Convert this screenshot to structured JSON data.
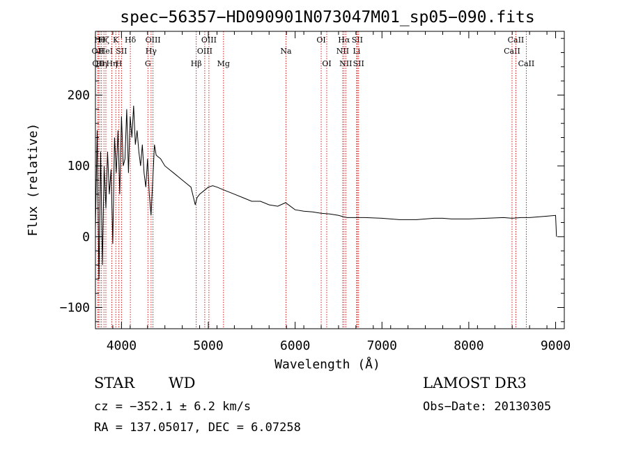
{
  "chart_data": {
    "type": "line",
    "title": "spec−56357−HD090901N073047M01_sp05−090.fits",
    "xlabel": "Wavelength (Å)",
    "ylabel": "Flux (relative)",
    "xlim": [
      3700,
      9100
    ],
    "ylim": [
      -130,
      290
    ],
    "x_ticks": [
      4000,
      5000,
      6000,
      7000,
      8000,
      9000
    ],
    "y_ticks": [
      -100,
      0,
      100,
      200
    ],
    "grid": false,
    "line_color": "#000000",
    "marker_color": "#cc0000",
    "series": [
      {
        "name": "flux",
        "x": [
          3700,
          3720,
          3740,
          3760,
          3780,
          3800,
          3820,
          3840,
          3860,
          3880,
          3900,
          3920,
          3940,
          3960,
          3980,
          4000,
          4020,
          4040,
          4060,
          4080,
          4100,
          4120,
          4140,
          4160,
          4180,
          4200,
          4220,
          4240,
          4260,
          4280,
          4300,
          4320,
          4340,
          4360,
          4380,
          4400,
          4450,
          4500,
          4550,
          4600,
          4650,
          4700,
          4750,
          4800,
          4850,
          4870,
          4900,
          4950,
          5000,
          5050,
          5100,
          5200,
          5300,
          5400,
          5500,
          5600,
          5700,
          5800,
          5890,
          6000,
          6100,
          6200,
          6300,
          6400,
          6500,
          6560,
          6600,
          6700,
          6800,
          7000,
          7200,
          7400,
          7600,
          7700,
          7800,
          8000,
          8200,
          8400,
          8500,
          8600,
          8700,
          8800,
          8900,
          9000,
          9010
        ],
        "y": [
          10,
          150,
          -60,
          120,
          -40,
          100,
          40,
          120,
          60,
          95,
          -10,
          140,
          90,
          150,
          60,
          170,
          100,
          110,
          180,
          90,
          170,
          140,
          185,
          130,
          150,
          120,
          100,
          130,
          90,
          70,
          110,
          60,
          30,
          80,
          130,
          115,
          110,
          100,
          95,
          90,
          85,
          80,
          75,
          70,
          45,
          55,
          60,
          65,
          70,
          72,
          70,
          65,
          60,
          55,
          50,
          50,
          45,
          43,
          48,
          38,
          36,
          35,
          33,
          32,
          30,
          28,
          27,
          27,
          27,
          26,
          24,
          24,
          26,
          26,
          25,
          25,
          26,
          27,
          26,
          27,
          27,
          28,
          29,
          30,
          0
        ]
      }
    ],
    "line_markers": [
      {
        "wl": 3727,
        "label": "OII",
        "row": 2
      },
      {
        "wl": 3734,
        "label": "OII",
        "row": 3
      },
      {
        "wl": 3750,
        "label": "Hθ",
        "row": 1
      },
      {
        "wl": 3770,
        "label": "Hη",
        "row": 3
      },
      {
        "wl": 3798,
        "label": "Hζ",
        "row": 1
      },
      {
        "wl": 3820,
        "label": "HeI",
        "row": 2
      },
      {
        "wl": 3889,
        "label": "Hη",
        "row": 3
      },
      {
        "wl": 3934,
        "label": "K",
        "row": 1
      },
      {
        "wl": 3970,
        "label": "H",
        "row": 3
      },
      {
        "wl": 4000,
        "label": "SII",
        "row": 2
      },
      {
        "wl": 4102,
        "label": "Hδ",
        "row": 1
      },
      {
        "wl": 4304,
        "label": "G",
        "row": 3
      },
      {
        "wl": 4341,
        "label": "Hγ",
        "row": 2
      },
      {
        "wl": 4363,
        "label": "OIII",
        "row": 1
      },
      {
        "wl": 4861,
        "label": "Hβ",
        "row": 3
      },
      {
        "wl": 4959,
        "label": "OIII",
        "row": 2
      },
      {
        "wl": 5007,
        "label": "OIII",
        "row": 1
      },
      {
        "wl": 5175,
        "label": "Mg",
        "row": 3
      },
      {
        "wl": 5894,
        "label": "Na",
        "row": 2
      },
      {
        "wl": 6300,
        "label": "OI",
        "row": 1
      },
      {
        "wl": 6364,
        "label": "OI",
        "row": 3
      },
      {
        "wl": 6548,
        "label": "NII",
        "row": 2
      },
      {
        "wl": 6563,
        "label": "Hα",
        "row": 1
      },
      {
        "wl": 6583,
        "label": "NII",
        "row": 3
      },
      {
        "wl": 6708,
        "label": "Li",
        "row": 2
      },
      {
        "wl": 6716,
        "label": "SII",
        "row": 1
      },
      {
        "wl": 6731,
        "label": "SII",
        "row": 3
      },
      {
        "wl": 8498,
        "label": "CaII",
        "row": 2
      },
      {
        "wl": 8542,
        "label": "CaII",
        "row": 1
      },
      {
        "wl": 8662,
        "label": "CaII",
        "row": 3
      }
    ]
  },
  "info": {
    "class": "STAR",
    "subclass": "WD",
    "survey": "LAMOST DR3",
    "cz_line": "cz = −352.1 ± 6.2 km/s",
    "obs_date": "Obs−Date: 20130305",
    "radec_line": "RA = 137.05017, DEC =   6.07258"
  }
}
